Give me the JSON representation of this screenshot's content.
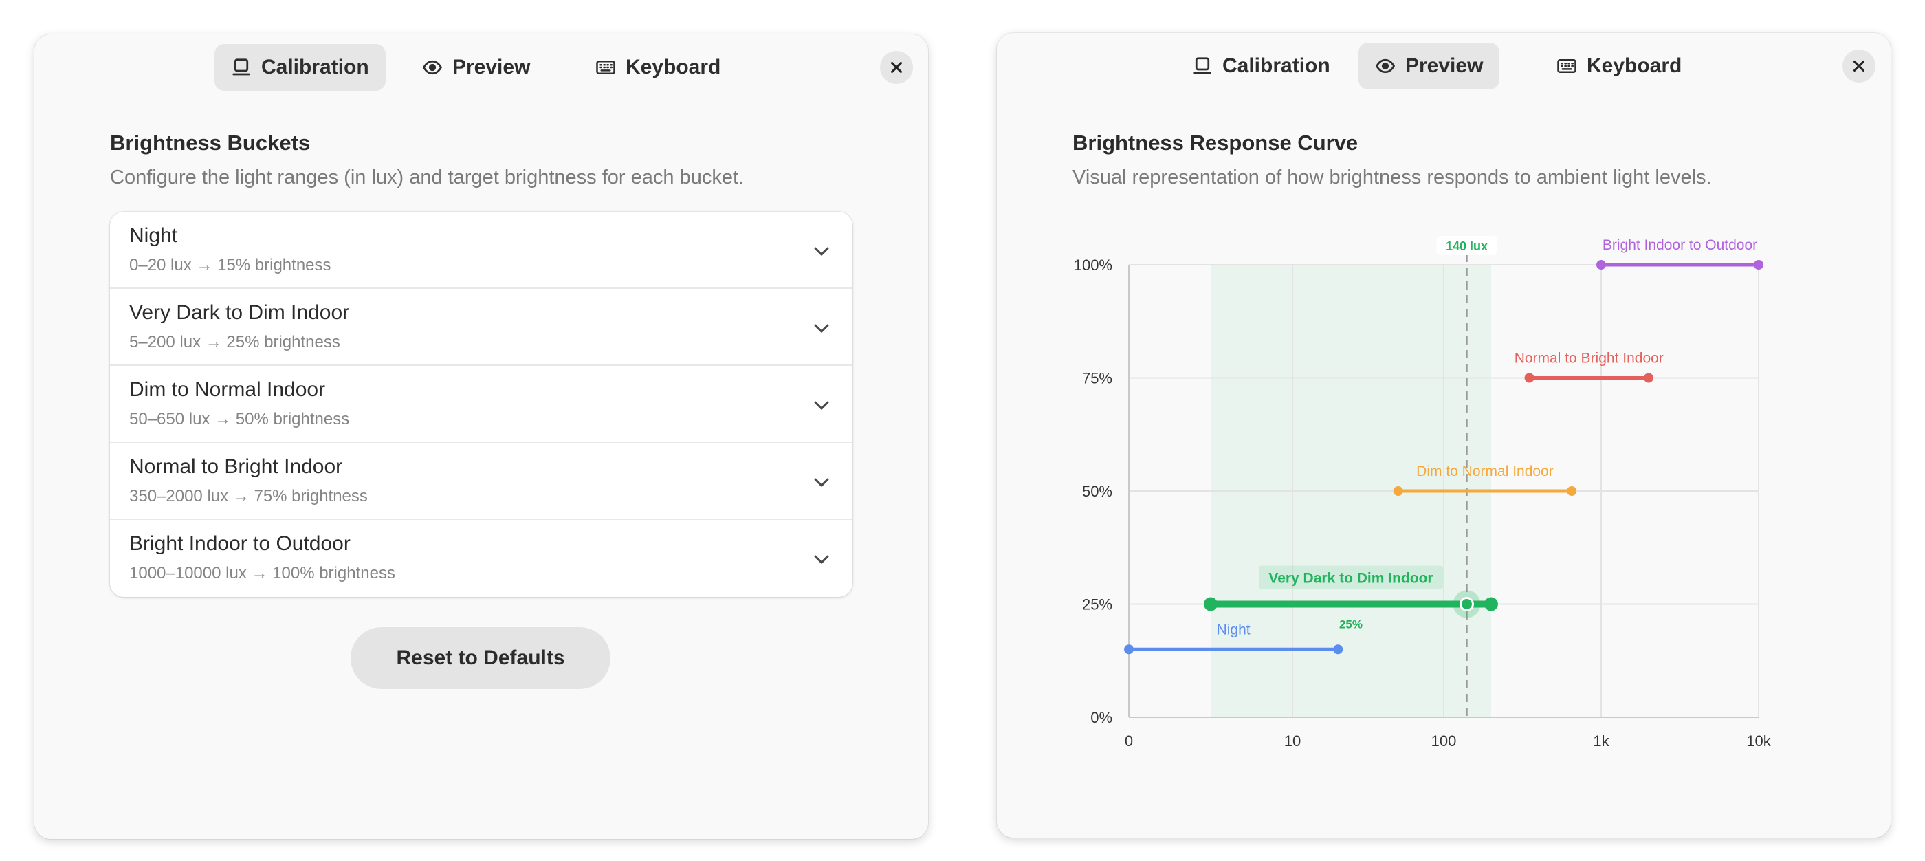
{
  "colors": {
    "night": "#5b8def",
    "very_dark": "#22b35e",
    "dim_normal": "#f5a83b",
    "normal_bright": "#e5605a",
    "bright_outdoor": "#b063dd",
    "window_bg": "#f9f9f9",
    "tab_active_bg": "#e6e6e6"
  },
  "tabs": [
    {
      "label": "Calibration",
      "icon": "laptop-icon"
    },
    {
      "label": "Preview",
      "icon": "eye-icon"
    },
    {
      "label": "Keyboard",
      "icon": "keyboard-icon"
    }
  ],
  "left_window": {
    "active_tab": "Calibration",
    "title": "Brightness Buckets",
    "description": "Configure the light ranges (in lux) and target brightness for each bucket.",
    "buckets": [
      {
        "name": "Night",
        "summary": "0–20 lux → 15% brightness"
      },
      {
        "name": "Very Dark to Dim Indoor",
        "summary": "5–200 lux → 25% brightness"
      },
      {
        "name": "Dim to Normal Indoor",
        "summary": "50–650 lux → 50% brightness"
      },
      {
        "name": "Normal to Bright Indoor",
        "summary": "350–2000 lux → 75% brightness"
      },
      {
        "name": "Bright Indoor to Outdoor",
        "summary": "1000–10000 lux → 100% brightness"
      }
    ],
    "reset_label": "Reset to Defaults"
  },
  "right_window": {
    "active_tab": "Preview",
    "title": "Brightness Response Curve",
    "description": "Visual representation of how brightness responds to ambient light levels."
  },
  "chart_data": {
    "type": "line",
    "x_scale": "log",
    "x_ticks": [
      "0",
      "10",
      "100",
      "1k",
      "10k"
    ],
    "y_ticks": [
      "0%",
      "25%",
      "50%",
      "75%",
      "100%"
    ],
    "ylim": [
      0,
      100
    ],
    "grid": true,
    "series": [
      {
        "name": "Night",
        "x_range": [
          0,
          20
        ],
        "y": 15,
        "color_key": "night"
      },
      {
        "name": "Very Dark to Dim Indoor",
        "x_range": [
          5,
          200
        ],
        "y": 25,
        "color_key": "very_dark",
        "active": true
      },
      {
        "name": "Dim to Normal Indoor",
        "x_range": [
          50,
          650
        ],
        "y": 50,
        "color_key": "dim_normal"
      },
      {
        "name": "Normal to Bright Indoor",
        "x_range": [
          350,
          2000
        ],
        "y": 75,
        "color_key": "normal_bright"
      },
      {
        "name": "Bright Indoor to Outdoor",
        "x_range": [
          1000,
          10000
        ],
        "y": 100,
        "color_key": "bright_outdoor"
      }
    ],
    "current": {
      "lux": 140,
      "label": "140 lux",
      "brightness": 25,
      "brightness_label": "25%"
    }
  }
}
